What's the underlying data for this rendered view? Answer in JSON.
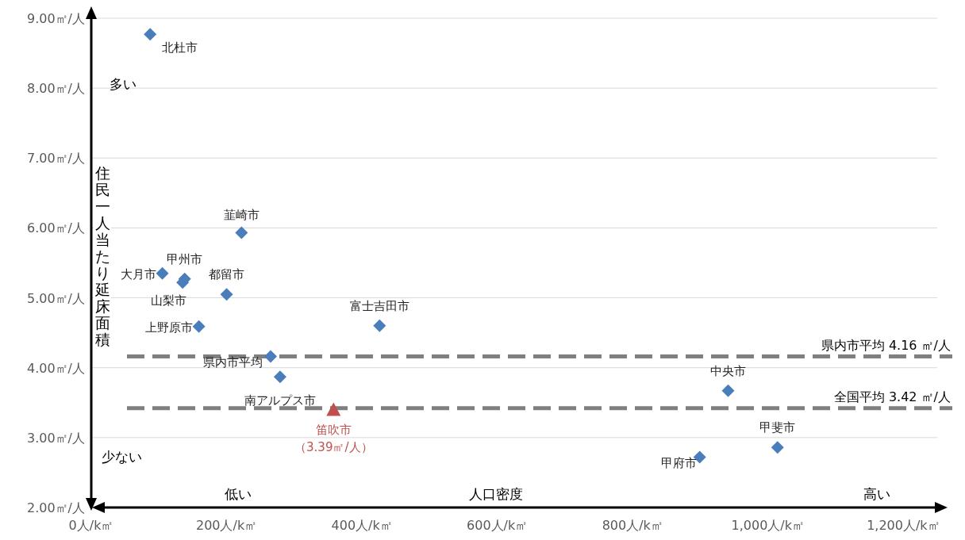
{
  "chart_data": {
    "type": "scatter",
    "xlabel": "人口密度",
    "ylabel": "住民一人当たり延床面積",
    "xlim": [
      0,
      1250
    ],
    "ylim": [
      2,
      9
    ],
    "xticks": [
      {
        "value": 0,
        "label": "0人/k㎡"
      },
      {
        "value": 200,
        "label": "200人/k㎡"
      },
      {
        "value": 400,
        "label": "400人/k㎡"
      },
      {
        "value": 600,
        "label": "600人/k㎡"
      },
      {
        "value": 800,
        "label": "800人/k㎡"
      },
      {
        "value": 1000,
        "label": "1,000人/k㎡"
      },
      {
        "value": 1200,
        "label": "1,200人/k㎡"
      }
    ],
    "yticks": [
      {
        "value": 2,
        "label": "2.00㎡/人"
      },
      {
        "value": 3,
        "label": "3.00㎡/人"
      },
      {
        "value": 4,
        "label": "4.00㎡/人"
      },
      {
        "value": 5,
        "label": "5.00㎡/人"
      },
      {
        "value": 6,
        "label": "6.00㎡/人"
      },
      {
        "value": 7,
        "label": "7.00㎡/人"
      },
      {
        "value": 8,
        "label": "8.00㎡/人"
      },
      {
        "value": 9,
        "label": "9.00㎡/人"
      }
    ],
    "grid": "y",
    "series": [
      {
        "color": "#4a7ebb",
        "marker": "diamond",
        "x": [
          87,
          222,
          105,
          138,
          135,
          200,
          159,
          426,
          265,
          279,
          941,
          1014,
          899
        ],
        "values": [
          8.77,
          5.93,
          5.35,
          5.27,
          5.22,
          5.05,
          4.59,
          4.6,
          4.16,
          3.87,
          3.67,
          2.86,
          2.72
        ]
      },
      {
        "name": "笛吹市",
        "color": "#c0504d",
        "marker": "triangle",
        "x": [
          358
        ],
        "values": [
          3.39
        ],
        "value_labels": [
          "（3.39㎡/人）"
        ]
      }
    ],
    "ref_lines": [
      {
        "axis": "y",
        "value": 4.16,
        "label": "県内市平均 4.16 ㎡/人",
        "color": "#7f7f7f",
        "line_style": "dashed"
      },
      {
        "axis": "y",
        "value": 3.42,
        "label": "全国平均 3.42 ㎡/人",
        "color": "#7f7f7f",
        "line_style": "dashed"
      }
    ],
    "annotations": [
      {
        "text": "北杜市",
        "x": 87,
        "y": 8.77
      },
      {
        "text": "韮崎市",
        "x": 222,
        "y": 5.93
      },
      {
        "text": "大月市",
        "x": 105,
        "y": 5.35
      },
      {
        "text": "甲州市",
        "x": 138,
        "y": 5.27
      },
      {
        "text": "山梨市",
        "x": 135,
        "y": 5.22
      },
      {
        "text": "都留市",
        "x": 200,
        "y": 5.05
      },
      {
        "text": "上野原市",
        "x": 159,
        "y": 4.59
      },
      {
        "text": "富士吉田市",
        "x": 426,
        "y": 4.6
      },
      {
        "text": "県内市平均",
        "x": 265,
        "y": 4.16
      },
      {
        "text": "南アルプス市",
        "x": 279,
        "y": 3.87
      },
      {
        "text": "中央市",
        "x": 941,
        "y": 3.67
      },
      {
        "text": "甲斐市",
        "x": 1014,
        "y": 2.86
      },
      {
        "text": "甲府市",
        "x": 899,
        "y": 2.72
      },
      "多い",
      "少ない",
      "低い",
      "高い"
    ]
  }
}
